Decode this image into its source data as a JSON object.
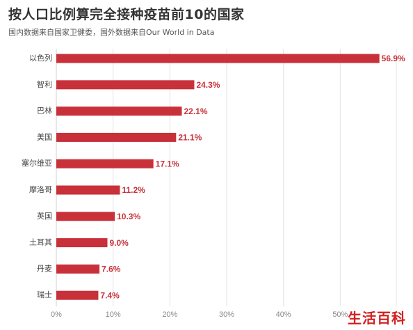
{
  "watermark": "生活百科",
  "colors": {
    "bar": "#c8313a",
    "value_text": "#c8313a",
    "watermark": "#d21f1f"
  },
  "chart_data": {
    "type": "bar",
    "orientation": "horizontal",
    "title": "按人口比例算完全接种疫苗前10的国家",
    "subtitle": "国内数据来自国家卫健委，国外数据来自Our World in Data",
    "categories": [
      "以色列",
      "智利",
      "巴林",
      "美国",
      "塞尔维亚",
      "摩洛哥",
      "英国",
      "土耳其",
      "丹麦",
      "瑞士"
    ],
    "values": [
      56.9,
      24.3,
      22.1,
      21.1,
      17.1,
      11.2,
      10.3,
      9.0,
      7.6,
      7.4
    ],
    "value_labels": [
      "56.9%",
      "24.3%",
      "22.1%",
      "21.1%",
      "17.1%",
      "11.2%",
      "10.3%",
      "9.0%",
      "7.6%",
      "7.4%"
    ],
    "xlim": [
      0,
      60
    ],
    "xticks": [
      0,
      10,
      20,
      30,
      40,
      50
    ],
    "xtick_labels": [
      "0%",
      "10%",
      "20%",
      "30%",
      "40%",
      "50%"
    ],
    "grid": true,
    "legend": "none"
  }
}
